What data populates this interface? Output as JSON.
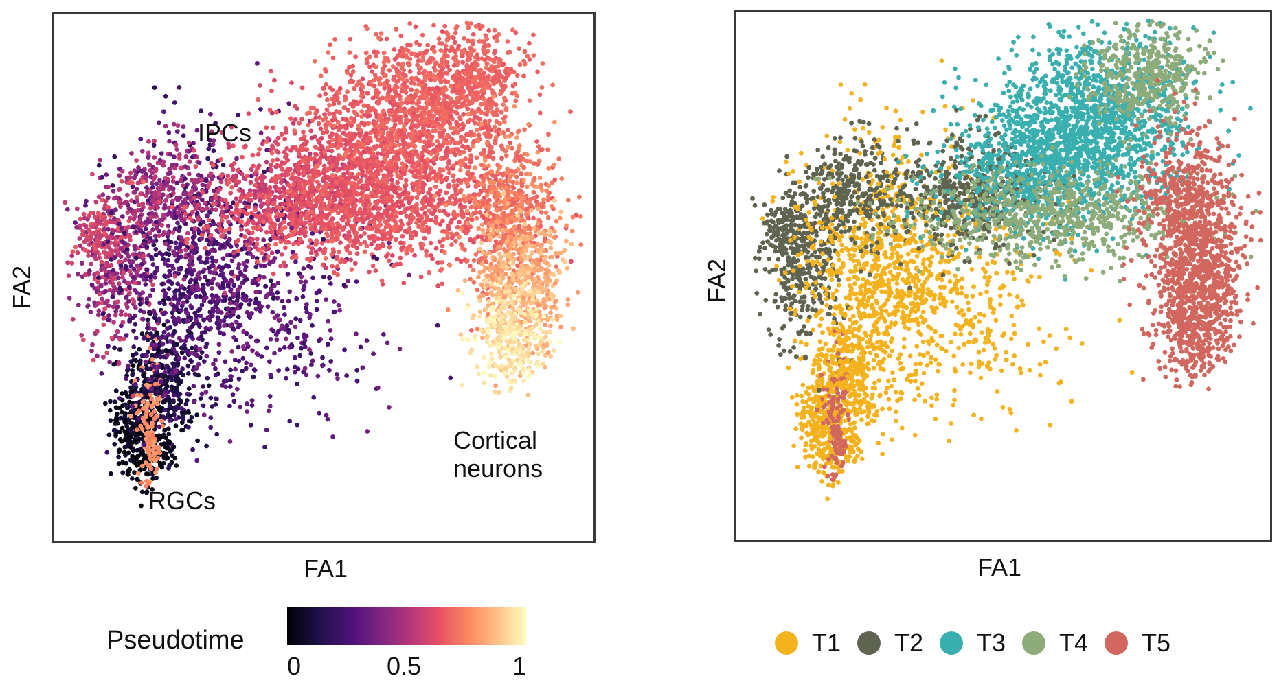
{
  "chart_data": [
    {
      "type": "scatter",
      "title": "",
      "xlabel": "FA1",
      "ylabel": "FA2",
      "color_encoding": "Pseudotime",
      "colormap": "magma",
      "colorbar": {
        "title": "Pseudotime",
        "ticks": [
          "0",
          "0.5",
          "1"
        ],
        "range": [
          0,
          1
        ]
      },
      "annotations": [
        "IPCs",
        "RGCs",
        "Cortical\nneurons"
      ],
      "grid": false,
      "axis_ticks": false
    },
    {
      "type": "scatter",
      "title": "",
      "xlabel": "FA1",
      "ylabel": "FA2",
      "legend_position": "bottom",
      "series": [
        {
          "name": "T1",
          "color": "#f5b21f"
        },
        {
          "name": "T2",
          "color": "#5f6451"
        },
        {
          "name": "T3",
          "color": "#3aafaf"
        },
        {
          "name": "T4",
          "color": "#8eab7a"
        },
        {
          "name": "T5",
          "color": "#d1675f"
        }
      ],
      "grid": false,
      "axis_ticks": false
    }
  ]
}
